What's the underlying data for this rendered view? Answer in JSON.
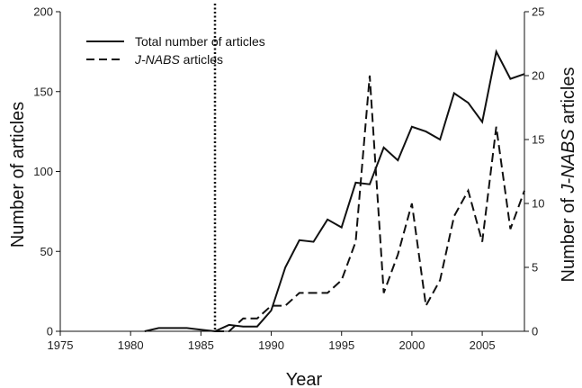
{
  "chart_data": {
    "type": "line",
    "xlabel": "Year",
    "ylabel": "Number of articles",
    "y2label_prefix": "Number of ",
    "y2label_italic": "J-NABS",
    "y2label_suffix": " articles",
    "xlim": [
      1975,
      2008
    ],
    "ylim": [
      0,
      200
    ],
    "y2lim": [
      0,
      25
    ],
    "x_ticks": [
      1975,
      1980,
      1985,
      1990,
      1995,
      2000,
      2005
    ],
    "y_ticks": [
      0,
      50,
      100,
      150,
      200
    ],
    "y2_ticks": [
      0,
      5,
      10,
      15,
      20,
      25
    ],
    "grid": false,
    "legend_position": "top-left",
    "vertical_marker": {
      "x": 1986,
      "style": "dotted"
    },
    "series": [
      {
        "name": "Total number of articles",
        "legend_prefix": "",
        "legend_italic": "",
        "legend_suffix": "Total number of articles",
        "axis": "left",
        "style": "solid",
        "x": [
          1981,
          1982,
          1983,
          1984,
          1985,
          1986,
          1987,
          1988,
          1989,
          1990,
          1991,
          1992,
          1993,
          1994,
          1995,
          1996,
          1997,
          1998,
          1999,
          2000,
          2001,
          2002,
          2003,
          2004,
          2005,
          2006,
          2007,
          2008
        ],
        "values": [
          0,
          2,
          2,
          2,
          1,
          0,
          4,
          3,
          3,
          13,
          40,
          57,
          56,
          70,
          65,
          93,
          92,
          115,
          107,
          128,
          125,
          120,
          149,
          143,
          131,
          175,
          158,
          161
        ]
      },
      {
        "name": "J-NABS articles",
        "legend_prefix": "",
        "legend_italic": "J-NABS",
        "legend_suffix": " articles",
        "axis": "right",
        "style": "dashed",
        "x": [
          1986,
          1987,
          1988,
          1989,
          1990,
          1991,
          1992,
          1993,
          1994,
          1995,
          1996,
          1997,
          1998,
          1999,
          2000,
          2001,
          2002,
          2003,
          2004,
          2005,
          2006,
          2007,
          2008
        ],
        "values": [
          0,
          0,
          1,
          1,
          2,
          2,
          3,
          3,
          3,
          4,
          7,
          20,
          3,
          6,
          10,
          2,
          4,
          9,
          11,
          7,
          16,
          8,
          11
        ]
      }
    ]
  }
}
